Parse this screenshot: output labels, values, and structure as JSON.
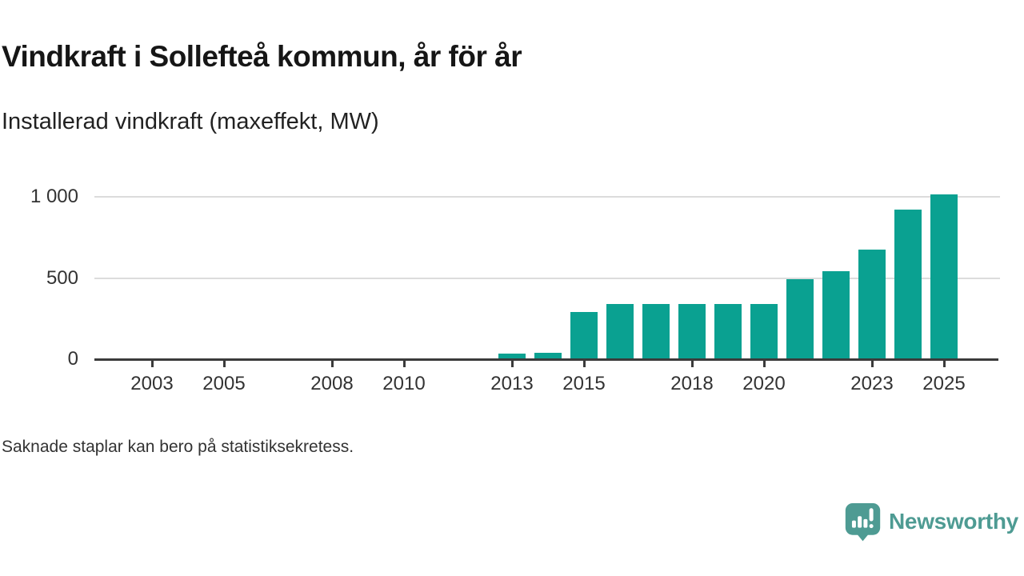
{
  "header": {
    "title": "Vindkraft i Sollefteå kommun, år för år",
    "subtitle": "Installerad vindkraft (maxeffekt, MW)"
  },
  "footer": {
    "note": "Saknade staplar kan bero på statistiksekretess.",
    "brand": "Newsworthy"
  },
  "colors": {
    "bar": "#0aa191",
    "brand": "#4e9b93",
    "axis": "#3b3b3b",
    "grid": "#dcdcdc",
    "text": "#333333"
  },
  "chart_data": {
    "type": "bar",
    "title": "Vindkraft i Sollefteå kommun, år för år",
    "subtitle": "Installerad vindkraft (maxeffekt, MW)",
    "unit": "MW",
    "categories": [
      2013,
      2014,
      2015,
      2016,
      2017,
      2018,
      2019,
      2020,
      2021,
      2022,
      2023,
      2024,
      2025
    ],
    "values": [
      35,
      40,
      290,
      340,
      340,
      340,
      340,
      340,
      495,
      540,
      675,
      920,
      1015
    ],
    "missing_years": [
      2002,
      2003,
      2004,
      2005,
      2006,
      2007,
      2008,
      2009,
      2010,
      2011,
      2012
    ],
    "x_ticks": [
      {
        "value": 2003,
        "label": "2003"
      },
      {
        "value": 2005,
        "label": "2005"
      },
      {
        "value": 2008,
        "label": "2008"
      },
      {
        "value": 2010,
        "label": "2010"
      },
      {
        "value": 2013,
        "label": "2013"
      },
      {
        "value": 2015,
        "label": "2015"
      },
      {
        "value": 2018,
        "label": "2018"
      },
      {
        "value": 2020,
        "label": "2020"
      },
      {
        "value": 2023,
        "label": "2023"
      },
      {
        "value": 2025,
        "label": "2025"
      }
    ],
    "y_ticks": [
      {
        "value": 0,
        "label": "0"
      },
      {
        "value": 500,
        "label": "500"
      },
      {
        "value": 1000,
        "label": "1 000"
      }
    ],
    "ylim": [
      0,
      1050
    ],
    "x_range": [
      2001.5,
      2026.5
    ],
    "grid": "horizontal",
    "legend": false,
    "bar_color": "#0aa191",
    "note": "Saknade staplar kan bero på statistiksekretess."
  }
}
